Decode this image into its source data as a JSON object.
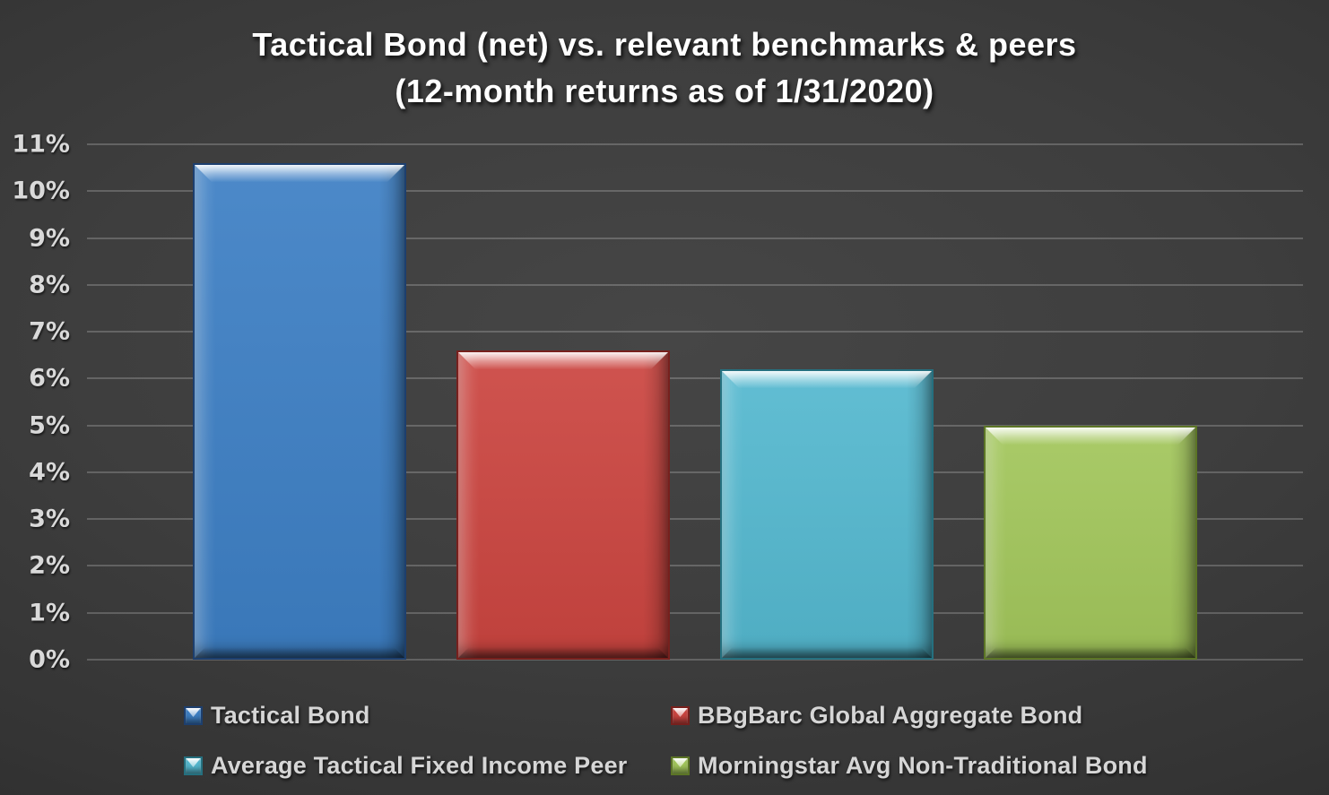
{
  "chart_data": {
    "type": "bar",
    "title": "Tactical Bond (net) vs. relevant benchmarks & peers",
    "subtitle": "(12-month returns as of 1/31/2020)",
    "categories": [
      "Tactical Bond",
      "BBgBarc Global Aggregate Bond",
      "Average Tactical Fixed Income Peer",
      "Morningstar Avg Non-Traditional Bond"
    ],
    "values": [
      10.6,
      6.6,
      6.2,
      5.0
    ],
    "unit": "%",
    "ylim": [
      0,
      11
    ],
    "ytick_step": 1,
    "ytick_labels": [
      "0%",
      "1%",
      "2%",
      "3%",
      "4%",
      "5%",
      "6%",
      "7%",
      "8%",
      "9%",
      "10%",
      "11%"
    ],
    "grid": true,
    "xlabel": "",
    "ylabel": "",
    "bar_colors": {
      "base": [
        "#3d7fc4",
        "#cb4540",
        "#54b8cf",
        "#a2c65b"
      ],
      "edge": [
        "#1d3f6e",
        "#77201d",
        "#25707f",
        "#5c7526"
      ]
    },
    "legend": {
      "position": "bottom",
      "columns": 2,
      "entries": [
        {
          "label": "Tactical Bond",
          "color": "#3d7fc4",
          "edge": "#1d3f6e"
        },
        {
          "label": "BBgBarc Global Aggregate Bond",
          "color": "#cb4540",
          "edge": "#77201d"
        },
        {
          "label": "Average Tactical Fixed Income Peer",
          "color": "#54b8cf",
          "edge": "#25707f"
        },
        {
          "label": "Morningstar Avg Non-Traditional Bond",
          "color": "#a2c65b",
          "edge": "#5c7526"
        }
      ]
    },
    "background_color": "#3a3a3a",
    "text_color": "#d9d9d9",
    "title_color": "#ffffff"
  }
}
